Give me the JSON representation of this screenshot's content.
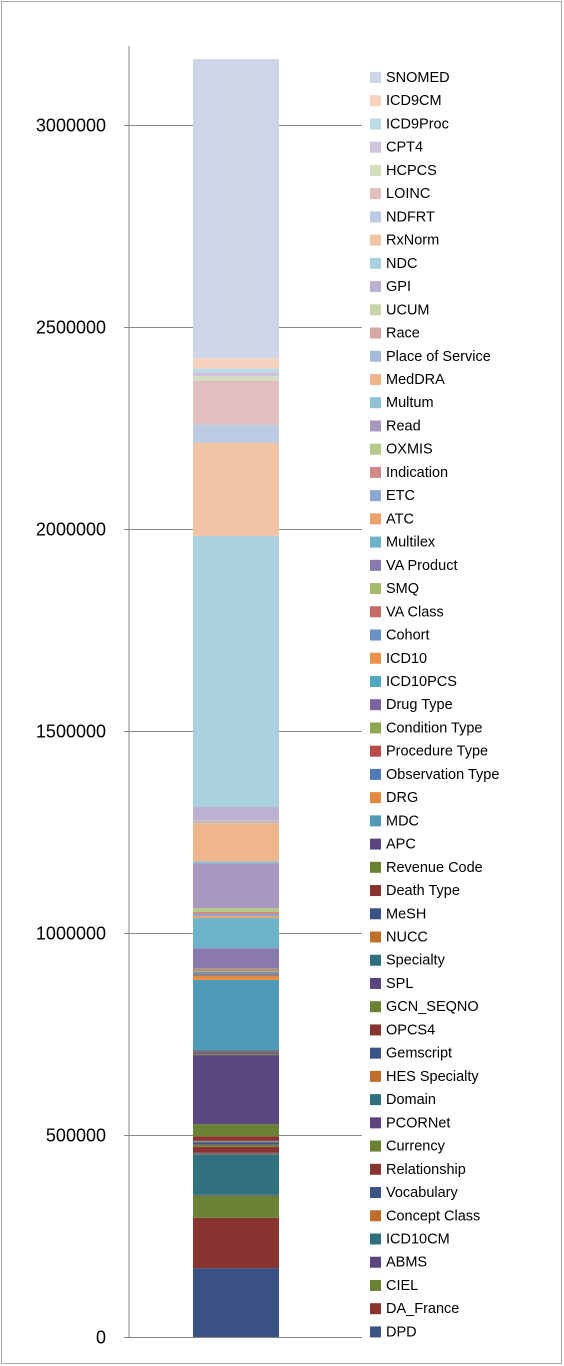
{
  "chart_data": {
    "type": "bar",
    "stacked": true,
    "title": "",
    "xlabel": "",
    "ylabel": "",
    "ylim": [
      0,
      3500000
    ],
    "yticks": [
      0,
      500000,
      1000000,
      1500000,
      2000000,
      2500000,
      3000000
    ],
    "ytick_labels": [
      "0",
      "500000",
      "1000000",
      "1500000",
      "2000000",
      "2500000",
      "3000000"
    ],
    "grid": true,
    "legend_position": "right",
    "legend_order": [
      "SNOMED",
      "ICD9CM",
      "ICD9Proc",
      "CPT4",
      "HCPCS",
      "LOINC",
      "NDFRT",
      "RxNorm",
      "NDC",
      "GPI",
      "UCUM",
      "Race",
      "Place of Service",
      "MedDRA",
      "Multum",
      "Read",
      "OXMIS",
      "Indication",
      "ETC",
      "ATC",
      "Multilex",
      "VA Product",
      "SMQ",
      "VA Class",
      "Cohort",
      "ICD10",
      "ICD10PCS",
      "Drug Type",
      "Condition Type",
      "Procedure Type",
      "Observation Type",
      "DRG",
      "MDC",
      "APC",
      "Revenue Code",
      "Death Type",
      "MeSH",
      "NUCC",
      "Specialty",
      "SPL",
      "GCN_SEQNO",
      "OPCS4",
      "Gemscript",
      "HES Specialty",
      "Domain",
      "PCORNet",
      "Currency",
      "Relationship",
      "Vocabulary",
      "Concept Class",
      "ICD10CM",
      "ABMS",
      "CIEL",
      "DA_France",
      "DPD"
    ],
    "series": [
      {
        "name": "DPD",
        "value": 170000,
        "color": "#3a5284"
      },
      {
        "name": "DA_France",
        "value": 125000,
        "color": "#883532"
      },
      {
        "name": "CIEL",
        "value": 55000,
        "color": "#6b8234"
      },
      {
        "name": "ABMS",
        "value": 2000,
        "color": "#5a4580"
      },
      {
        "name": "ICD10CM",
        "value": 100000,
        "color": "#31707f"
      },
      {
        "name": "Concept Class",
        "value": 2000,
        "color": "#c06f2a"
      },
      {
        "name": "Vocabulary",
        "value": 2000,
        "color": "#3a5284"
      },
      {
        "name": "Relationship",
        "value": 15000,
        "color": "#883532"
      },
      {
        "name": "Currency",
        "value": 5000,
        "color": "#6b8234"
      },
      {
        "name": "PCORNet",
        "value": 5000,
        "color": "#5a4580"
      },
      {
        "name": "Domain",
        "value": 2000,
        "color": "#31707f"
      },
      {
        "name": "HES Specialty",
        "value": 2000,
        "color": "#c06f2a"
      },
      {
        "name": "Gemscript",
        "value": 2000,
        "color": "#3a5284"
      },
      {
        "name": "OPCS4",
        "value": 10000,
        "color": "#883532"
      },
      {
        "name": "GCN_SEQNO",
        "value": 30000,
        "color": "#6b8234"
      },
      {
        "name": "SPL",
        "value": 170000,
        "color": "#5a4580"
      },
      {
        "name": "Specialty",
        "value": 2000,
        "color": "#31707f"
      },
      {
        "name": "NUCC",
        "value": 2000,
        "color": "#c06f2a"
      },
      {
        "name": "MeSH",
        "value": 2000,
        "color": "#3a5284"
      },
      {
        "name": "Death Type",
        "value": 2000,
        "color": "#883532"
      },
      {
        "name": "Revenue Code",
        "value": 2000,
        "color": "#6b8234"
      },
      {
        "name": "APC",
        "value": 2000,
        "color": "#5a4580"
      },
      {
        "name": "MDC",
        "value": 175000,
        "color": "#4e9ab8"
      },
      {
        "name": "DRG",
        "value": 10000,
        "color": "#e58a3f"
      },
      {
        "name": "Observation Type",
        "value": 2000,
        "color": "#4f7ab8"
      },
      {
        "name": "Procedure Type",
        "value": 2000,
        "color": "#b84b48"
      },
      {
        "name": "Condition Type",
        "value": 2000,
        "color": "#8ea84f"
      },
      {
        "name": "Drug Type",
        "value": 2000,
        "color": "#7a63a0"
      },
      {
        "name": "ICD10PCS",
        "value": 2000,
        "color": "#4fa9c0"
      },
      {
        "name": "ICD10",
        "value": 2000,
        "color": "#e8924a"
      },
      {
        "name": "Cohort",
        "value": 2000,
        "color": "#6a8fc4"
      },
      {
        "name": "VA Class",
        "value": 2000,
        "color": "#c46a67"
      },
      {
        "name": "SMQ",
        "value": 2000,
        "color": "#a3bb6b"
      },
      {
        "name": "VA Product",
        "value": 50000,
        "color": "#8a79ad"
      },
      {
        "name": "Multilex",
        "value": 75000,
        "color": "#6cb3c9"
      },
      {
        "name": "ATC",
        "value": 5000,
        "color": "#eca26a"
      },
      {
        "name": "ETC",
        "value": 5000,
        "color": "#8ba6d0"
      },
      {
        "name": "Indication",
        "value": 5000,
        "color": "#cf8a87"
      },
      {
        "name": "OXMIS",
        "value": 10000,
        "color": "#b5c98b"
      },
      {
        "name": "Read",
        "value": 110000,
        "color": "#a898c0"
      },
      {
        "name": "Multum",
        "value": 5000,
        "color": "#8ec3d5"
      },
      {
        "name": "MedDRA",
        "value": 95000,
        "color": "#efb58d"
      },
      {
        "name": "Place of Service",
        "value": 2000,
        "color": "#a6bad9"
      },
      {
        "name": "Race",
        "value": 2000,
        "color": "#d7a7a6"
      },
      {
        "name": "UCUM",
        "value": 2000,
        "color": "#c6d6a8"
      },
      {
        "name": "GPI",
        "value": 35000,
        "color": "#bcb1d2"
      },
      {
        "name": "NDC",
        "value": 670000,
        "color": "#a9d0dd"
      },
      {
        "name": "RxNorm",
        "value": 230000,
        "color": "#f2c4a6"
      },
      {
        "name": "NDFRT",
        "value": 45000,
        "color": "#bccbe3"
      },
      {
        "name": "LOINC",
        "value": 110000,
        "color": "#e0bfbe"
      },
      {
        "name": "HCPCS",
        "value": 10000,
        "color": "#d2dfbc"
      },
      {
        "name": "CPT4",
        "value": 10000,
        "color": "#cdc5de"
      },
      {
        "name": "ICD9Proc",
        "value": 10000,
        "color": "#bedbe5"
      },
      {
        "name": "ICD9CM",
        "value": 25000,
        "color": "#f6d3bf"
      },
      {
        "name": "SNOMED",
        "value": 740000,
        "color": "#cdd5e8"
      }
    ]
  }
}
